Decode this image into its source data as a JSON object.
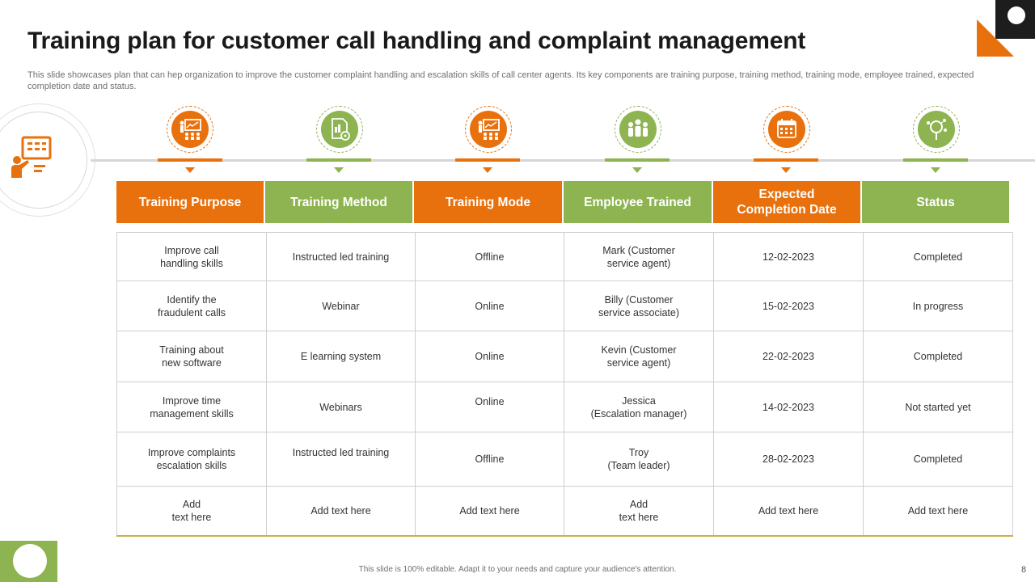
{
  "title": "Training plan for customer call handling and complaint management",
  "subtitle": "This slide showcases plan that can hep organization to improve the customer complaint handling and escalation skills of call center agents. Its key components are training purpose, training method, training mode, employee trained, expected completion date and status.",
  "colors": {
    "orange": "#e8710d",
    "green": "#8db450",
    "dark": "#1d1d1d"
  },
  "columns": [
    {
      "label": "Training Purpose",
      "color": "orange",
      "icon": "training-presentation-icon"
    },
    {
      "label": "Training Method",
      "color": "green",
      "icon": "document-gear-icon"
    },
    {
      "label": "Training Mode",
      "color": "orange",
      "icon": "training-presentation-icon"
    },
    {
      "label": "Employee Trained",
      "color": "green",
      "icon": "employee-group-icon"
    },
    {
      "label": "Expected\nCompletion Date",
      "color": "orange",
      "icon": "calendar-icon"
    },
    {
      "label": "Status",
      "color": "green",
      "icon": "magnifier-status-icon"
    }
  ],
  "rows": [
    [
      "Improve  call\nhandling skills",
      "Instructed led training",
      "Offline",
      "Mark (Customer\nservice  agent)",
      "12-02-2023",
      "Completed"
    ],
    [
      "Identify the\nfraudulent calls",
      "Webinar",
      "Online",
      "Billy (Customer\nservice associate)",
      "15-02-2023",
      "In progress"
    ],
    [
      "Training  about\nnew software",
      "E learning  system",
      "Online",
      "Kevin  (Customer\nservice  agent)",
      "22-02-2023",
      "Completed"
    ],
    [
      "Improve  time\nmanagement  skills",
      "Webinars",
      "Online",
      "Jessica\n(Escalation manager)",
      "14-02-2023",
      "Not started yet"
    ],
    [
      "Improve  complaints\nescalation skills",
      "Instructed led training",
      "Offline",
      "Troy\n(Team  leader)",
      "28-02-2023",
      "Completed"
    ],
    [
      "Add\ntext here",
      "Add text here",
      "Add text here",
      "Add\ntext here",
      "Add text here",
      "Add text here"
    ]
  ],
  "footer": "This slide is 100% editable.  Adapt it to your needs and capture your audience's attention.",
  "page_number": "8"
}
